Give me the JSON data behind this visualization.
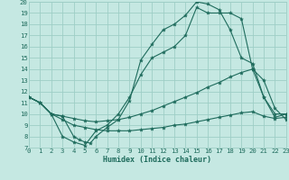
{
  "xlabel": "Humidex (Indice chaleur)",
  "bg_color": "#c5e8e2",
  "grid_color": "#9ecec6",
  "line_color": "#1e6b5c",
  "xlim": [
    0,
    23
  ],
  "ylim": [
    7,
    20
  ],
  "xticks": [
    0,
    1,
    2,
    3,
    4,
    5,
    6,
    7,
    8,
    9,
    10,
    11,
    12,
    13,
    14,
    15,
    16,
    17,
    18,
    19,
    20,
    21,
    22,
    23
  ],
  "yticks": [
    7,
    8,
    9,
    10,
    11,
    12,
    13,
    14,
    15,
    16,
    17,
    18,
    19,
    20
  ],
  "line1_x": [
    0,
    1,
    2,
    3,
    4,
    5,
    6,
    7,
    8,
    9,
    10,
    11,
    12,
    13,
    14,
    15,
    16,
    17,
    18,
    19,
    20,
    21,
    22,
    23
  ],
  "line1_y": [
    11.5,
    11.0,
    10.0,
    8.0,
    7.5,
    7.2,
    8.5,
    9.0,
    10.0,
    11.5,
    13.5,
    15.0,
    15.5,
    16.0,
    17.0,
    19.5,
    19.0,
    19.0,
    19.0,
    18.5,
    14.0,
    13.0,
    10.5,
    9.5
  ],
  "line2_x": [
    0,
    1,
    2,
    3,
    4,
    4.5,
    5,
    5.5,
    6,
    7,
    8,
    9,
    10,
    11,
    12,
    13,
    14,
    15,
    16,
    17,
    18,
    19,
    20,
    21,
    22,
    23
  ],
  "line2_y": [
    11.5,
    11.0,
    10.0,
    9.8,
    8.0,
    7.7,
    7.5,
    7.4,
    8.0,
    8.8,
    9.5,
    11.2,
    14.8,
    16.2,
    17.5,
    18.0,
    18.8,
    20.0,
    19.8,
    19.3,
    17.5,
    15.0,
    14.5,
    11.5,
    9.7,
    10.0
  ],
  "line3_x": [
    0,
    1,
    2,
    3,
    4,
    5,
    6,
    7,
    8,
    9,
    10,
    11,
    12,
    13,
    14,
    15,
    16,
    17,
    18,
    19,
    20,
    21,
    22,
    23
  ],
  "line3_y": [
    11.5,
    11.0,
    10.0,
    9.8,
    9.6,
    9.4,
    9.3,
    9.4,
    9.5,
    9.7,
    10.0,
    10.3,
    10.7,
    11.1,
    11.5,
    11.9,
    12.4,
    12.8,
    13.3,
    13.7,
    14.0,
    11.5,
    10.0,
    10.0
  ],
  "line4_x": [
    0,
    1,
    2,
    3,
    4,
    5,
    6,
    7,
    8,
    9,
    10,
    11,
    12,
    13,
    14,
    15,
    16,
    17,
    18,
    19,
    20,
    21,
    22,
    23
  ],
  "line4_y": [
    11.5,
    11.0,
    10.0,
    9.5,
    9.0,
    8.8,
    8.6,
    8.5,
    8.5,
    8.5,
    8.6,
    8.7,
    8.8,
    9.0,
    9.1,
    9.3,
    9.5,
    9.7,
    9.9,
    10.1,
    10.2,
    9.8,
    9.6,
    9.7
  ]
}
